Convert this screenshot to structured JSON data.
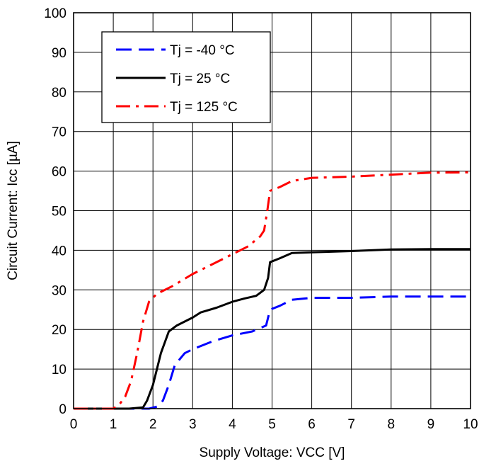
{
  "chart_data": {
    "type": "line",
    "title": "",
    "xlabel": "Supply Voltage: VCC [V]",
    "ylabel": "Circuit Current: Icc [µA]",
    "xlim": [
      0,
      10
    ],
    "ylim": [
      0,
      100
    ],
    "x_ticks": [
      "0",
      "1",
      "2",
      "3",
      "4",
      "5",
      "6",
      "7",
      "8",
      "9",
      "10"
    ],
    "y_ticks": [
      "0",
      "10",
      "20",
      "30",
      "40",
      "50",
      "60",
      "70",
      "80",
      "90",
      "100"
    ],
    "grid": true,
    "legend_position": "top-left",
    "series": [
      {
        "name": "Tj = -40 °C",
        "color": "#0000ff",
        "dash": "dashed",
        "points": [
          [
            0,
            0
          ],
          [
            1.9,
            0
          ],
          [
            2.1,
            0.5
          ],
          [
            2.25,
            2
          ],
          [
            2.4,
            6
          ],
          [
            2.55,
            11
          ],
          [
            2.8,
            14
          ],
          [
            3.0,
            15
          ],
          [
            3.5,
            17
          ],
          [
            4.0,
            18.5
          ],
          [
            4.5,
            19.5
          ],
          [
            4.85,
            21
          ],
          [
            4.95,
            25
          ],
          [
            5.2,
            26
          ],
          [
            5.5,
            27.5
          ],
          [
            6.0,
            28
          ],
          [
            7.0,
            28
          ],
          [
            8.0,
            28.3
          ],
          [
            9.0,
            28.3
          ],
          [
            10.0,
            28.3
          ]
        ]
      },
      {
        "name": "Tj = 25 °C",
        "color": "#000000",
        "dash": "solid",
        "points": [
          [
            0,
            0
          ],
          [
            1.4,
            0
          ],
          [
            1.75,
            0.3
          ],
          [
            1.85,
            2
          ],
          [
            2.0,
            6
          ],
          [
            2.1,
            10
          ],
          [
            2.2,
            14
          ],
          [
            2.4,
            19.5
          ],
          [
            2.6,
            21
          ],
          [
            2.8,
            22
          ],
          [
            3.0,
            23
          ],
          [
            3.2,
            24.3
          ],
          [
            3.6,
            25.5
          ],
          [
            4.0,
            27
          ],
          [
            4.3,
            27.8
          ],
          [
            4.6,
            28.5
          ],
          [
            4.8,
            30
          ],
          [
            4.9,
            33
          ],
          [
            4.95,
            37
          ],
          [
            5.2,
            38
          ],
          [
            5.5,
            39.3
          ],
          [
            6.0,
            39.5
          ],
          [
            7.0,
            39.8
          ],
          [
            7.5,
            40
          ],
          [
            8.0,
            40.2
          ],
          [
            9.0,
            40.3
          ],
          [
            10.0,
            40.3
          ]
        ]
      },
      {
        "name": "Tj = 125 °C",
        "color": "#ff0000",
        "dash": "dashdot",
        "points": [
          [
            0,
            0
          ],
          [
            1.0,
            0
          ],
          [
            1.15,
            1
          ],
          [
            1.3,
            3
          ],
          [
            1.45,
            7
          ],
          [
            1.6,
            14
          ],
          [
            1.75,
            22
          ],
          [
            1.9,
            27
          ],
          [
            2.1,
            29
          ],
          [
            2.5,
            31
          ],
          [
            3.0,
            34
          ],
          [
            3.5,
            36.5
          ],
          [
            4.0,
            39
          ],
          [
            4.4,
            41
          ],
          [
            4.7,
            43.5
          ],
          [
            4.8,
            45
          ],
          [
            4.88,
            50
          ],
          [
            4.95,
            55
          ],
          [
            5.2,
            56
          ],
          [
            5.5,
            57.5
          ],
          [
            6.0,
            58.3
          ],
          [
            7.0,
            58.6
          ],
          [
            8.0,
            59.1
          ],
          [
            9.0,
            59.6
          ],
          [
            10.0,
            59.7
          ]
        ]
      }
    ]
  }
}
